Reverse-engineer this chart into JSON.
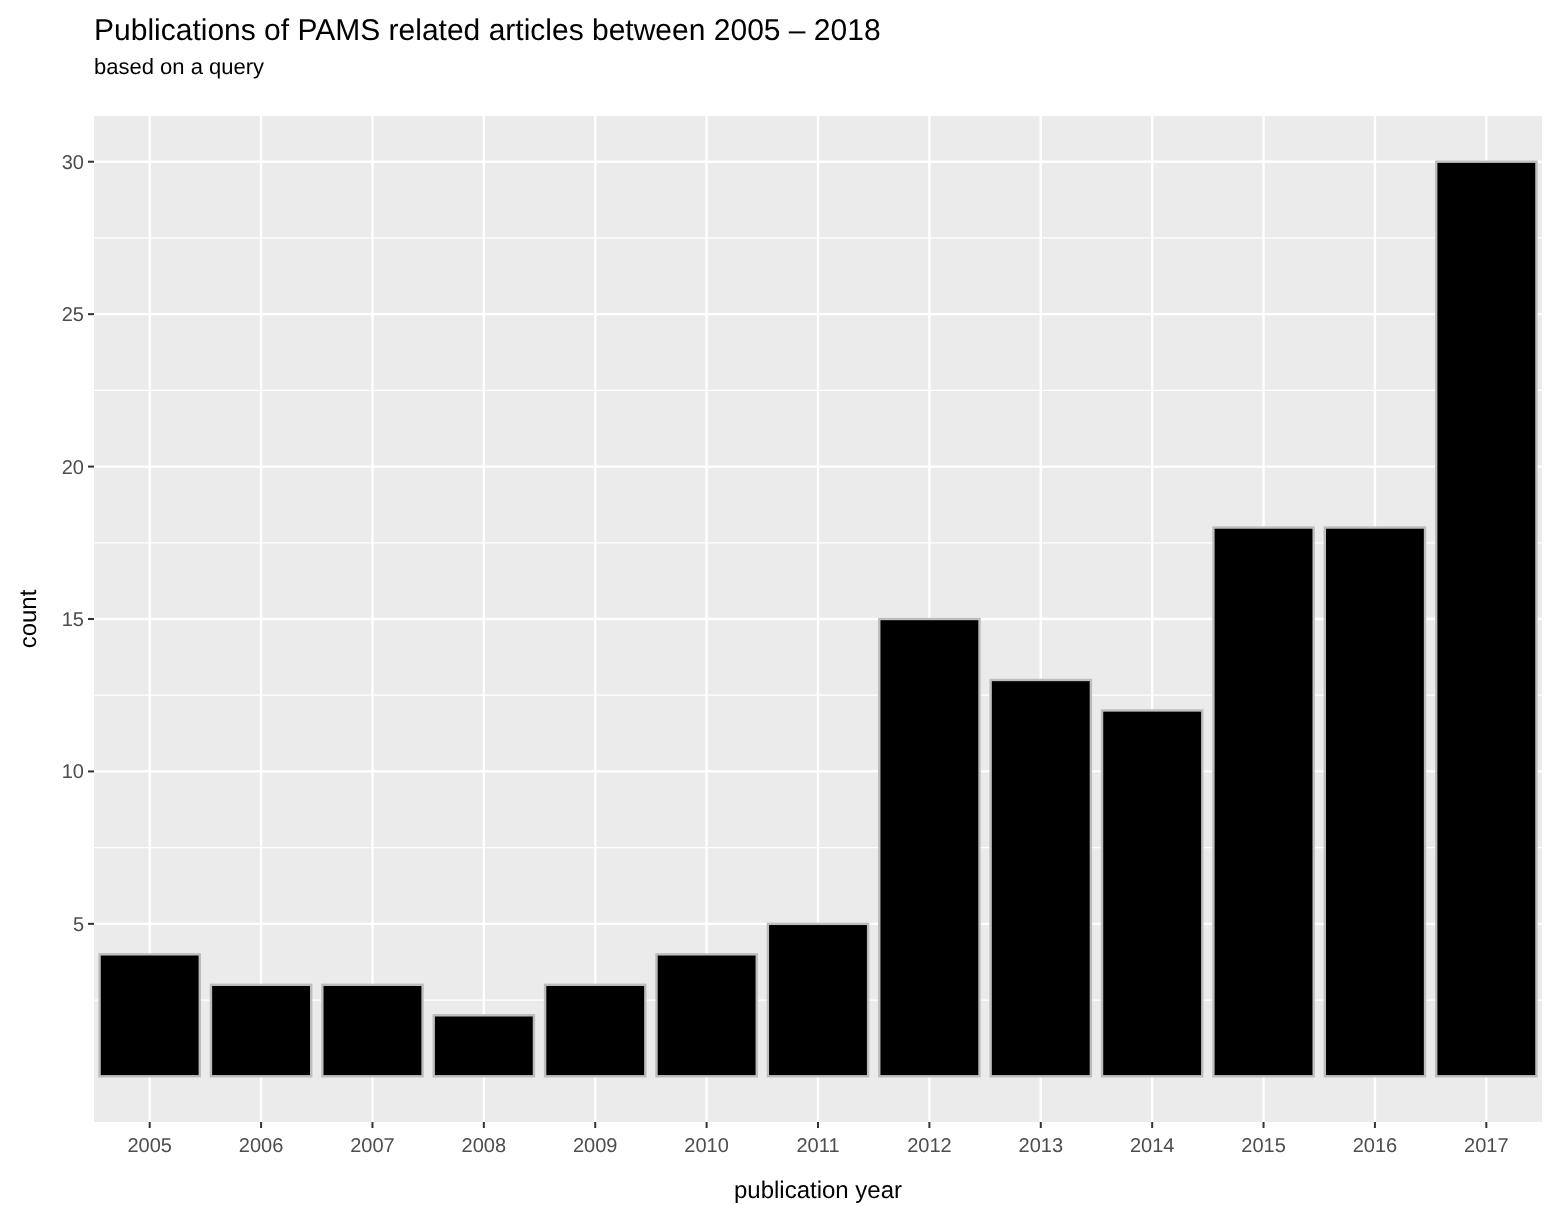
{
  "chart_data": {
    "type": "bar",
    "title": "Publications of PAMS related articles between 2005 – 2018",
    "subtitle": "based on a query",
    "xlabel": "publication year",
    "ylabel": "count",
    "categories": [
      "2005",
      "2006",
      "2007",
      "2008",
      "2009",
      "2010",
      "2011",
      "2012",
      "2013",
      "2014",
      "2015",
      "2016",
      "2017"
    ],
    "values": [
      4,
      3,
      3,
      2,
      3,
      4,
      5,
      15,
      13,
      12,
      18,
      18,
      30
    ],
    "color": "#000000",
    "ylim": [
      -1.5,
      31.5
    ],
    "yticks": [
      5,
      10,
      15,
      20,
      25,
      30
    ],
    "grid": true
  }
}
